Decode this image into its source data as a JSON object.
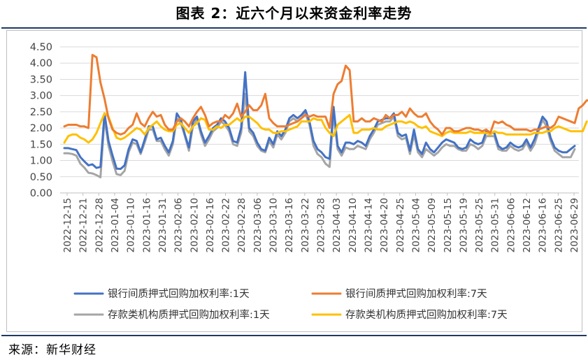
{
  "header": {
    "title": "图表 2：近六个月以来资金利率走势"
  },
  "footer": {
    "source": "来源：新华财经"
  },
  "colors": {
    "blue": "#4472c4",
    "orange": "#ed7d31",
    "gray": "#a5a5a5",
    "gold": "#ffc000"
  },
  "chart_data": {
    "type": "line",
    "title": "",
    "xlabel": "",
    "ylabel": "",
    "ylim": [
      0,
      4.5
    ],
    "yticks": [
      "0.00",
      "0.50",
      "1.00",
      "1.50",
      "2.00",
      "2.50",
      "3.00",
      "3.50",
      "4.00",
      "4.50"
    ],
    "grid": "horizontal",
    "legend_position": "bottom",
    "x_tick_labels": [
      "2022-12-15",
      "2022-12-21",
      "2022-12-28",
      "2023-01-04",
      "2023-01-10",
      "2023-01-16",
      "2023-01-31",
      "2023-02-06",
      "2023-02-10",
      "2023-02-16",
      "2023-02-22",
      "2023-02-28",
      "2023-03-06",
      "2023-03-10",
      "2023-03-16",
      "2023-03-22",
      "2023-03-28",
      "2023-04-03",
      "2023-04-10",
      "2023-04-14",
      "2023-04-20",
      "2023-04-25",
      "2023-05-04",
      "2023-05-09",
      "2023-05-15",
      "2023-05-19",
      "2023-05-25",
      "2023-05-31",
      "2023-06-06",
      "2023-06-12",
      "2023-06-16",
      "2023-06-25",
      "2023-06-29"
    ],
    "series": [
      {
        "name": "银行间质押式回购加权利率:1天",
        "color": "#4472c4",
        "values": [
          1.38,
          1.38,
          1.35,
          1.32,
          1.1,
          0.97,
          0.85,
          0.88,
          0.77,
          0.8,
          2.45,
          1.6,
          1.15,
          0.75,
          0.74,
          0.85,
          1.35,
          1.65,
          1.6,
          1.25,
          1.65,
          2.05,
          2.05,
          1.65,
          1.7,
          1.45,
          1.25,
          1.6,
          2.45,
          2.25,
          1.8,
          1.4,
          2.2,
          2.35,
          1.9,
          1.55,
          1.75,
          2.0,
          2.1,
          2.3,
          2.2,
          2.0,
          1.6,
          1.55,
          2.0,
          3.72,
          2.0,
          1.85,
          1.55,
          1.35,
          1.3,
          1.7,
          1.5,
          1.9,
          1.75,
          1.95,
          2.3,
          2.4,
          2.3,
          2.4,
          2.55,
          2.2,
          1.6,
          1.35,
          1.25,
          1.1,
          1.05,
          2.65,
          1.45,
          1.25,
          1.55,
          1.55,
          1.5,
          1.6,
          1.55,
          1.45,
          1.75,
          1.95,
          2.2,
          2.25,
          2.3,
          2.3,
          2.45,
          1.85,
          1.75,
          1.8,
          1.3,
          1.95,
          1.35,
          1.2,
          1.55,
          1.35,
          1.25,
          1.4,
          1.55,
          1.65,
          1.6,
          1.55,
          1.4,
          1.35,
          1.4,
          1.65,
          1.55,
          1.5,
          1.55,
          1.9,
          1.85,
          1.85,
          1.45,
          1.35,
          1.4,
          1.55,
          1.45,
          1.4,
          1.45,
          1.65,
          1.4,
          1.65,
          2.0,
          2.35,
          2.2,
          1.7,
          1.4,
          1.3,
          1.25,
          1.25,
          1.35,
          1.45
        ]
      },
      {
        "name": "银行间质押式回购加权利率:7天",
        "color": "#ed7d31",
        "values": [
          2.05,
          2.1,
          2.1,
          2.1,
          2.05,
          2.05,
          2.0,
          4.25,
          4.18,
          3.4,
          2.9,
          2.3,
          1.95,
          1.85,
          1.8,
          1.85,
          2.0,
          2.1,
          2.45,
          2.15,
          2.05,
          2.3,
          2.5,
          2.35,
          2.4,
          2.1,
          1.95,
          1.95,
          2.2,
          2.3,
          2.2,
          2.05,
          2.3,
          2.5,
          2.65,
          2.4,
          2.05,
          2.15,
          2.2,
          2.2,
          2.4,
          2.3,
          2.45,
          2.75,
          2.35,
          2.5,
          2.7,
          2.55,
          2.55,
          2.7,
          3.05,
          2.3,
          2.15,
          2.05,
          2.05,
          2.05,
          2.1,
          2.15,
          2.2,
          2.3,
          2.4,
          2.35,
          2.4,
          2.35,
          2.35,
          2.35,
          2.0,
          3.05,
          3.35,
          3.45,
          3.92,
          3.78,
          2.2,
          2.2,
          2.3,
          2.2,
          2.2,
          2.3,
          2.25,
          2.2,
          2.4,
          2.3,
          2.4,
          2.4,
          2.5,
          2.35,
          2.6,
          2.45,
          2.35,
          2.35,
          2.45,
          2.2,
          2.05,
          1.95,
          1.8,
          2.0,
          2.0,
          1.9,
          1.9,
          1.95,
          2.0,
          2.0,
          1.95,
          1.95,
          1.9,
          1.95,
          1.85,
          2.2,
          2.15,
          2.2,
          2.1,
          2.05,
          1.95,
          1.95,
          1.95,
          1.95,
          1.9,
          1.95,
          1.95,
          2.0,
          2.05,
          2.0,
          2.1,
          2.35,
          2.3,
          2.25,
          2.2,
          2.15,
          2.6,
          2.7,
          2.85,
          2.85,
          3.15
        ]
      },
      {
        "name": "存款类机构质押式回购加权利率:1天",
        "color": "#a5a5a5",
        "values": [
          1.22,
          1.22,
          1.2,
          1.15,
          0.9,
          0.78,
          0.62,
          0.6,
          0.55,
          0.48,
          2.3,
          1.45,
          0.98,
          0.58,
          0.55,
          0.68,
          1.25,
          1.55,
          1.5,
          1.2,
          1.55,
          1.95,
          1.95,
          1.6,
          1.6,
          1.35,
          1.15,
          1.5,
          2.3,
          2.15,
          1.75,
          1.3,
          2.05,
          2.3,
          1.8,
          1.45,
          1.65,
          1.9,
          2.0,
          2.2,
          2.1,
          1.9,
          1.5,
          1.45,
          1.85,
          3.05,
          1.9,
          1.75,
          1.45,
          1.3,
          1.25,
          1.6,
          1.4,
          1.8,
          1.65,
          1.85,
          2.2,
          2.3,
          2.2,
          2.3,
          2.45,
          2.1,
          1.45,
          1.2,
          1.1,
          0.9,
          0.8,
          2.45,
          1.35,
          1.15,
          1.4,
          1.35,
          1.35,
          1.45,
          1.4,
          1.35,
          1.65,
          1.85,
          2.1,
          2.15,
          2.2,
          2.2,
          2.35,
          1.75,
          1.65,
          1.7,
          1.2,
          1.8,
          1.25,
          1.1,
          1.35,
          1.25,
          1.15,
          1.25,
          1.4,
          1.5,
          1.45,
          1.45,
          1.35,
          1.3,
          1.3,
          1.5,
          1.45,
          1.35,
          1.45,
          1.75,
          1.75,
          1.75,
          1.35,
          1.3,
          1.3,
          1.45,
          1.35,
          1.3,
          1.35,
          1.55,
          1.3,
          1.5,
          1.9,
          2.25,
          2.05,
          1.6,
          1.3,
          1.2,
          1.1,
          1.1,
          1.1,
          1.35
        ]
      },
      {
        "name": "存款类机构质押式回购加权利率:7天",
        "color": "#ffc000",
        "values": [
          1.55,
          1.75,
          1.8,
          1.8,
          1.7,
          1.65,
          1.55,
          1.65,
          1.85,
          2.15,
          2.45,
          2.35,
          2.0,
          1.7,
          1.65,
          1.7,
          1.8,
          1.9,
          2.0,
          1.95,
          1.8,
          2.0,
          2.1,
          2.2,
          2.05,
          1.95,
          1.9,
          1.9,
          2.1,
          2.15,
          2.0,
          1.85,
          2.05,
          2.15,
          2.3,
          2.25,
          1.95,
          1.95,
          2.05,
          2.0,
          2.1,
          2.1,
          2.2,
          2.3,
          2.2,
          2.35,
          2.35,
          2.25,
          2.15,
          2.0,
          1.95,
          1.95,
          1.85,
          1.85,
          1.9,
          1.9,
          1.95,
          2.0,
          2.05,
          2.2,
          2.2,
          2.2,
          2.3,
          2.25,
          2.25,
          2.0,
          1.85,
          1.75,
          2.1,
          2.2,
          2.3,
          2.4,
          1.85,
          1.85,
          1.95,
          1.95,
          1.95,
          2.0,
          1.95,
          1.95,
          2.05,
          2.1,
          2.15,
          2.2,
          2.2,
          2.15,
          2.2,
          2.15,
          2.05,
          2.0,
          2.05,
          1.9,
          1.85,
          1.8,
          1.75,
          1.85,
          1.9,
          1.85,
          1.85,
          1.85,
          1.85,
          1.9,
          1.85,
          1.85,
          1.85,
          1.85,
          1.8,
          1.9,
          1.85,
          1.85,
          1.8,
          1.8,
          1.8,
          1.8,
          1.8,
          1.8,
          1.8,
          1.85,
          1.85,
          1.85,
          1.9,
          1.9,
          2.0,
          2.05,
          2.0,
          1.95,
          1.9,
          1.9,
          1.9,
          1.9,
          2.2
        ]
      }
    ]
  }
}
